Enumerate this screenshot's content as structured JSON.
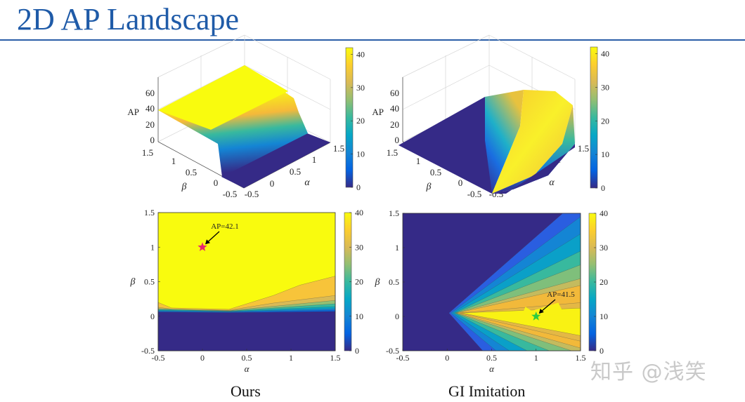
{
  "slide": {
    "title": "2D AP Landscape",
    "captions": [
      "Ours",
      "GI Imitation"
    ],
    "watermark": "知乎 @浅笑"
  },
  "colors": {
    "title": "#1f5ba8",
    "colormap": "parula",
    "colormap_stops": [
      "#352a87",
      "#0363e1",
      "#1485d4",
      "#06a7c6",
      "#38b99e",
      "#92bf73",
      "#d9ba56",
      "#fcce2e",
      "#f9fb0e"
    ],
    "ours_marker": "#e8246e",
    "gi_marker": "#2ecc40"
  },
  "chart_data": [
    {
      "id": "ours-surface",
      "type": "surface",
      "method": "Ours",
      "xlabel": "α",
      "ylabel": "β",
      "zlabel": "AP",
      "xlim": [
        -0.5,
        1.5
      ],
      "ylim": [
        -0.5,
        1.5
      ],
      "zlim": [
        0,
        60
      ],
      "xticks": [
        "-0.5",
        "0",
        "0.5",
        "1",
        "1.5"
      ],
      "yticks": [
        "-0.5",
        "0",
        "0.5",
        "1",
        "1.5"
      ],
      "zticks": [
        "0",
        "20",
        "40",
        "60"
      ],
      "colorbar": {
        "range": [
          0,
          42
        ],
        "ticks": [
          "0",
          "10",
          "20",
          "30",
          "40"
        ]
      },
      "description_values": {
        "plateau_AP": 42,
        "floor_AP": 0,
        "transition_beta": 0.05
      }
    },
    {
      "id": "gi-surface",
      "type": "surface",
      "method": "GI Imitation",
      "xlabel": "α",
      "ylabel": "β",
      "zlabel": "AP",
      "xlim": [
        -0.5,
        1.5
      ],
      "ylim": [
        -0.5,
        1.5
      ],
      "zlim": [
        0,
        60
      ],
      "xticks": [
        "-0.5",
        "0",
        "0.5",
        "1",
        "1.5"
      ],
      "yticks": [
        "-0.5",
        "0",
        "0.5",
        "1",
        "1.5"
      ],
      "zticks": [
        "0",
        "20",
        "40",
        "60"
      ],
      "colorbar": {
        "range": [
          0,
          42
        ],
        "ticks": [
          "0",
          "10",
          "20",
          "30",
          "40"
        ]
      }
    },
    {
      "id": "ours-contour",
      "type": "heatmap",
      "style": "filled-contour",
      "method": "Ours",
      "xlabel": "α",
      "ylabel": "β",
      "xlim": [
        -0.5,
        1.5
      ],
      "ylim": [
        -0.5,
        1.5
      ],
      "xticks": [
        "-0.5",
        "0",
        "0.5",
        "1",
        "1.5"
      ],
      "yticks": [
        "-0.5",
        "0",
        "0.5",
        "1",
        "1.5"
      ],
      "colorbar": {
        "range": [
          0,
          40
        ],
        "ticks": [
          "0",
          "10",
          "20",
          "30",
          "40"
        ]
      },
      "annotation": {
        "text": "AP=42.1",
        "alpha": 0,
        "beta": 1,
        "marker": "star"
      }
    },
    {
      "id": "gi-contour",
      "type": "heatmap",
      "style": "filled-contour",
      "method": "GI Imitation",
      "xlabel": "α",
      "ylabel": "β",
      "xlim": [
        -0.5,
        1.5
      ],
      "ylim": [
        -0.5,
        1.5
      ],
      "xticks": [
        "-0.5",
        "0",
        "0.5",
        "1",
        "1.5"
      ],
      "yticks": [
        "-0.5",
        "0",
        "0.5",
        "1",
        "1.5"
      ],
      "colorbar": {
        "range": [
          0,
          40
        ],
        "ticks": [
          "0",
          "10",
          "20",
          "30",
          "40"
        ]
      },
      "annotation": {
        "text": "AP=41.5",
        "alpha": 1,
        "beta": 0,
        "marker": "star"
      }
    }
  ]
}
